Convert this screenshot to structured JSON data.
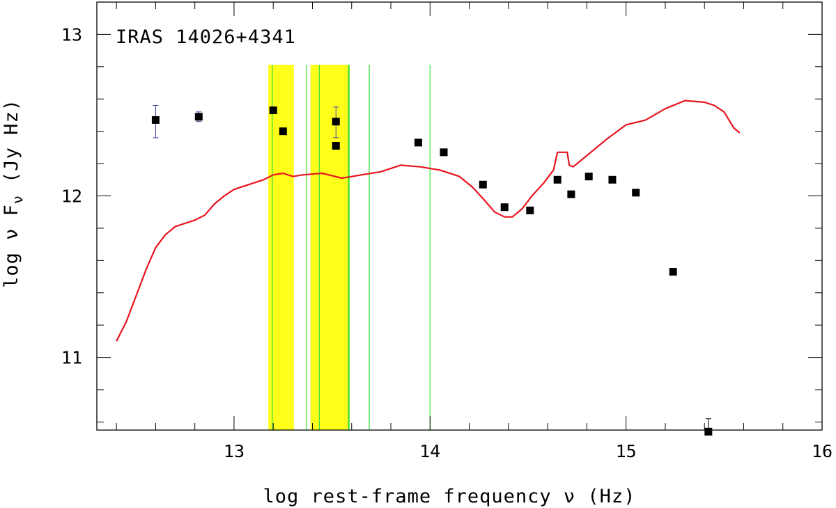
{
  "chart_data": {
    "type": "scatter",
    "title": "IRAS 14026+4341",
    "xlabel": "log rest-frame frequency ν (Hz)",
    "ylabel": "log ν Fν (Jy Hz)",
    "xlim": [
      12.3,
      16.0
    ],
    "ylim": [
      10.55,
      13.2
    ],
    "x_ticks": [
      13,
      14,
      15,
      16
    ],
    "y_ticks": [
      11,
      12,
      13
    ],
    "grid": false,
    "colors": {
      "model": "#e8141e",
      "band_fill": "#ffff1a",
      "band_line": "#40e040",
      "error_bar_blue": "#3a3aa8",
      "error_bar_black": "#000000",
      "points": "#000000"
    },
    "shaded_bands": [
      {
        "x0": 13.175,
        "x1": 13.305
      },
      {
        "x0": 13.39,
        "x1": 13.59
      }
    ],
    "vertical_lines": [
      13.195,
      13.37,
      13.435,
      13.585,
      13.69,
      14.0
    ],
    "points": [
      {
        "x": 12.6,
        "y": 12.47,
        "err_low": 0.11,
        "err_high": 0.09,
        "err_color": "blue"
      },
      {
        "x": 12.82,
        "y": 12.49,
        "err_low": 0.03,
        "err_high": 0.03,
        "err_color": "blue"
      },
      {
        "x": 13.2,
        "y": 12.53
      },
      {
        "x": 13.25,
        "y": 12.4
      },
      {
        "x": 13.52,
        "y": 12.46,
        "err_low": 0.1,
        "err_high": 0.09,
        "err_color": "blue"
      },
      {
        "x": 13.52,
        "y": 12.31
      },
      {
        "x": 13.94,
        "y": 12.33
      },
      {
        "x": 14.07,
        "y": 12.27
      },
      {
        "x": 14.27,
        "y": 12.07
      },
      {
        "x": 14.38,
        "y": 11.93
      },
      {
        "x": 14.51,
        "y": 11.91
      },
      {
        "x": 14.65,
        "y": 12.1
      },
      {
        "x": 14.72,
        "y": 12.01
      },
      {
        "x": 14.81,
        "y": 12.12
      },
      {
        "x": 14.93,
        "y": 12.1
      },
      {
        "x": 15.05,
        "y": 12.02
      },
      {
        "x": 15.24,
        "y": 11.53
      },
      {
        "x": 15.42,
        "y": 10.54,
        "err_low": 0.0,
        "err_high": 0.08,
        "err_color": "black"
      }
    ],
    "model_curve": {
      "x": [
        12.4,
        12.45,
        12.5,
        12.55,
        12.6,
        12.65,
        12.7,
        12.75,
        12.8,
        12.85,
        12.9,
        12.95,
        13.0,
        13.05,
        13.1,
        13.15,
        13.2,
        13.25,
        13.3,
        13.35,
        13.45,
        13.55,
        13.65,
        13.75,
        13.85,
        13.95,
        14.05,
        14.15,
        14.22,
        14.28,
        14.33,
        14.38,
        14.42,
        14.47,
        14.52,
        14.58,
        14.63,
        14.65,
        14.7,
        14.71,
        14.73,
        14.8,
        14.9,
        15.0,
        15.1,
        15.2,
        15.3,
        15.4,
        15.45,
        15.5,
        15.55,
        15.58
      ],
      "y": [
        11.1,
        11.22,
        11.38,
        11.54,
        11.68,
        11.76,
        11.81,
        11.83,
        11.85,
        11.88,
        11.95,
        12.0,
        12.04,
        12.06,
        12.08,
        12.1,
        12.13,
        12.14,
        12.12,
        12.13,
        12.14,
        12.11,
        12.13,
        12.15,
        12.19,
        12.18,
        12.16,
        12.12,
        12.05,
        11.97,
        11.9,
        11.87,
        11.87,
        11.92,
        12.0,
        12.08,
        12.16,
        12.27,
        12.27,
        12.19,
        12.18,
        12.25,
        12.35,
        12.44,
        12.47,
        12.54,
        12.59,
        12.58,
        12.56,
        12.52,
        12.42,
        12.39
      ]
    }
  }
}
